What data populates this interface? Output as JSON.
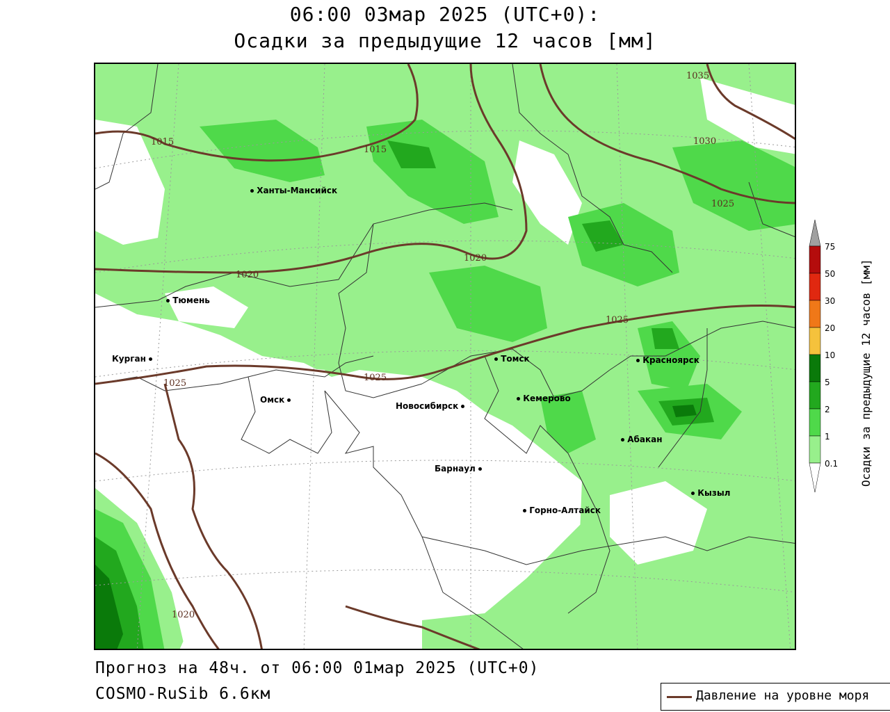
{
  "header": {
    "line1": "06:00 03мар 2025 (UTC+0):",
    "line2": "Осадки за предыдущие 12 часов [мм]"
  },
  "footer": {
    "forecast": "Прогноз на 48ч. от 06:00 01мар 2025 (UTC+0)",
    "model": "COSMO-RuSib 6.6км"
  },
  "legend": {
    "pressure_line": "Давление на уровне моря",
    "pressure_color": "#6b3a2a"
  },
  "colorbar": {
    "title": "Осадки за предыдущие 12 часов [мм]",
    "ticks": [
      "0.1",
      "1",
      "2",
      "5",
      "10",
      "20",
      "30",
      "50",
      "75"
    ],
    "colors": [
      "#98f08c",
      "#4fd94a",
      "#22a81e",
      "#0a7a0a",
      "#f5c23c",
      "#f07818",
      "#e02810",
      "#b40c0c",
      "#a0a0a0"
    ]
  },
  "cities": [
    {
      "name": "Ханты-Мансийск"
    },
    {
      "name": "Тюмень"
    },
    {
      "name": "Курган"
    },
    {
      "name": "Омск"
    },
    {
      "name": "Новосибирск"
    },
    {
      "name": "Томск"
    },
    {
      "name": "Кемерово"
    },
    {
      "name": "Красноярск"
    },
    {
      "name": "Абакан"
    },
    {
      "name": "Барнаул"
    },
    {
      "name": "Горно-Алтайск"
    },
    {
      "name": "Кызыл"
    }
  ],
  "isobars": [
    "1015",
    "1015",
    "1020",
    "1020",
    "1025",
    "1025",
    "1025",
    "1025",
    "1030",
    "1035",
    "1020"
  ]
}
